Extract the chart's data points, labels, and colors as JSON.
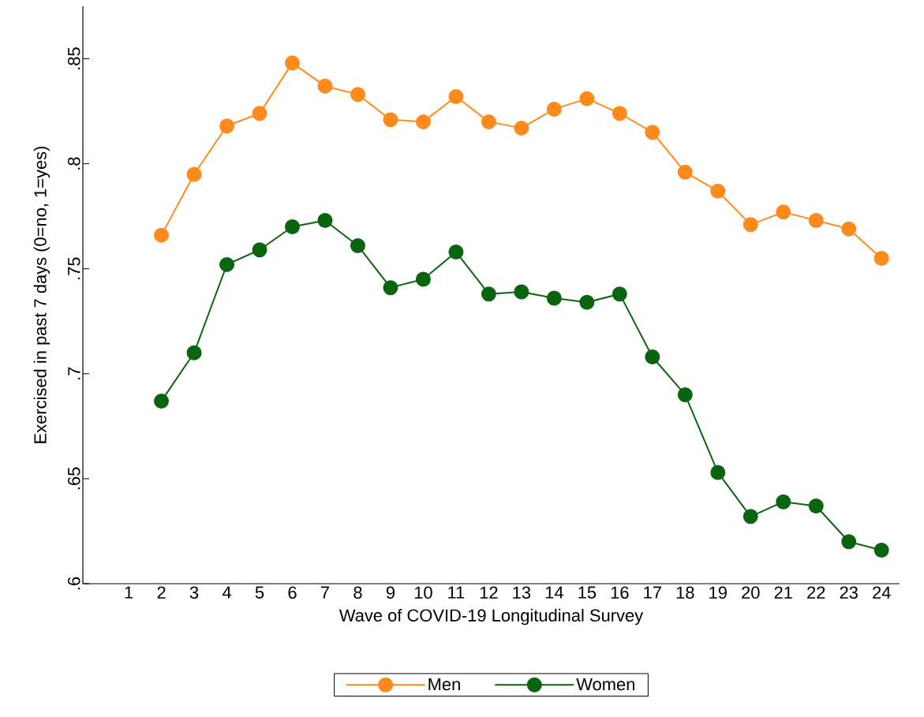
{
  "chart_data": {
    "type": "line",
    "xlabel": "Wave of COVID-19 Longitudinal Survey",
    "ylabel": "Exercised in past 7 days (0=no, 1=yes)",
    "categories": [
      "1",
      "2",
      "3",
      "4",
      "5",
      "6",
      "7",
      "8",
      "9",
      "10",
      "11",
      "12",
      "13",
      "14",
      "15",
      "16",
      "17",
      "18",
      "19",
      "20",
      "21",
      "22",
      "23",
      "24"
    ],
    "series": [
      {
        "name": "Men",
        "color": "#ff8a1c",
        "values": [
          null,
          0.766,
          0.795,
          0.818,
          0.824,
          0.848,
          0.837,
          0.833,
          0.821,
          0.82,
          0.832,
          0.82,
          0.817,
          0.826,
          0.831,
          0.824,
          0.815,
          0.796,
          0.787,
          0.771,
          0.777,
          0.773,
          0.769,
          0.755
        ]
      },
      {
        "name": "Women",
        "color": "#0a6410",
        "values": [
          null,
          0.687,
          0.71,
          0.752,
          0.759,
          0.77,
          0.773,
          0.761,
          0.741,
          0.745,
          0.758,
          0.738,
          0.739,
          0.736,
          0.734,
          0.738,
          0.708,
          0.69,
          0.653,
          0.632,
          0.639,
          0.637,
          0.62,
          0.616
        ]
      }
    ],
    "ylim": [
      0.6,
      0.875
    ],
    "yticks": [
      {
        "value": 0.6,
        "label": ".6"
      },
      {
        "value": 0.65,
        "label": ".65"
      },
      {
        "value": 0.7,
        "label": ".7"
      },
      {
        "value": 0.75,
        "label": ".75"
      },
      {
        "value": 0.8,
        "label": ".8"
      },
      {
        "value": 0.85,
        "label": ".85"
      }
    ],
    "grid": false,
    "legend": "bottom",
    "marker": "circle",
    "line_style": "solid"
  }
}
